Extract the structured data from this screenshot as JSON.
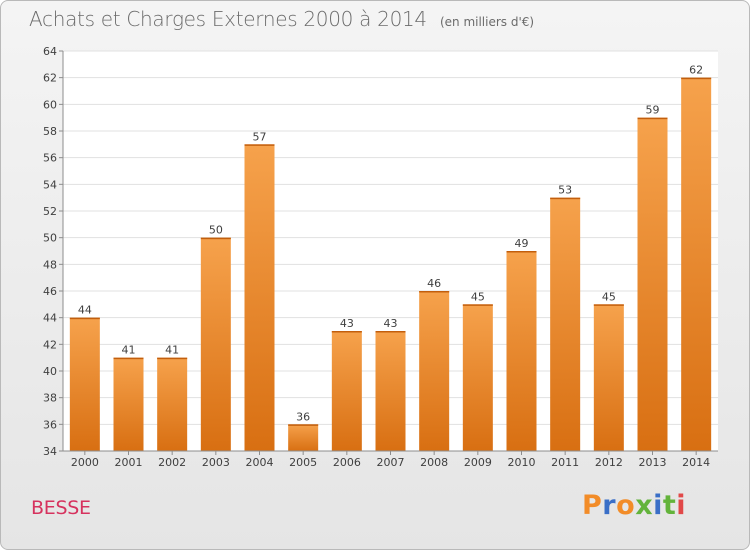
{
  "chart_data": {
    "type": "bar",
    "title": "Achats et Charges Externes 2000 à 2014",
    "subtitle": "(en milliers d'€)",
    "categories": [
      "2000",
      "2001",
      "2002",
      "2003",
      "2004",
      "2005",
      "2006",
      "2007",
      "2008",
      "2009",
      "2010",
      "2011",
      "2012",
      "2013",
      "2014"
    ],
    "values": [
      44,
      41,
      41,
      50,
      57,
      36,
      43,
      43,
      46,
      45,
      49,
      53,
      45,
      59,
      62
    ],
    "ylim": [
      34,
      64
    ],
    "yticks": [
      34,
      36,
      38,
      40,
      42,
      44,
      46,
      48,
      50,
      52,
      54,
      56,
      58,
      60,
      62,
      64
    ],
    "grid": true,
    "bar_color": "#f08a2a"
  },
  "footer": {
    "commune": "BESSE",
    "logo_text": "Proxiti",
    "logo_colors": [
      "#f28c28",
      "#3a6fc7",
      "#f28c28",
      "#63b33b",
      "#3a6fc7",
      "#63b33b",
      "#e14848"
    ]
  }
}
